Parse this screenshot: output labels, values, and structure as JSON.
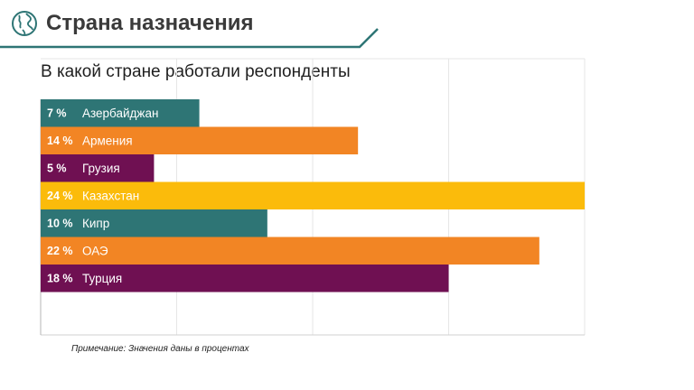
{
  "header": {
    "title": "Страна назначения",
    "logo_icon": "globe-icon",
    "accent_color": "#2e7575"
  },
  "chart_data": {
    "type": "bar",
    "orientation": "horizontal",
    "title": "В какой стране работали респонденты",
    "categories": [
      "Азербайджан",
      "Армения",
      "Грузия",
      "Казахстан",
      "Кипр",
      "ОАЭ",
      "Турция"
    ],
    "values": [
      7,
      14,
      5,
      24,
      10,
      22,
      18
    ],
    "value_labels": [
      "7 %",
      "14 %",
      "5 %",
      "24 %",
      "10 %",
      "22 %",
      "18 %"
    ],
    "colors": [
      "#2e7575",
      "#f28524",
      "#6f1052",
      "#fbbb0b",
      "#2e7575",
      "#f28524",
      "#6f1052"
    ],
    "xlim": [
      0,
      24
    ],
    "grid": true,
    "legend": "none"
  },
  "footer": {
    "note": "Примечание: Значения даны в процентах"
  }
}
